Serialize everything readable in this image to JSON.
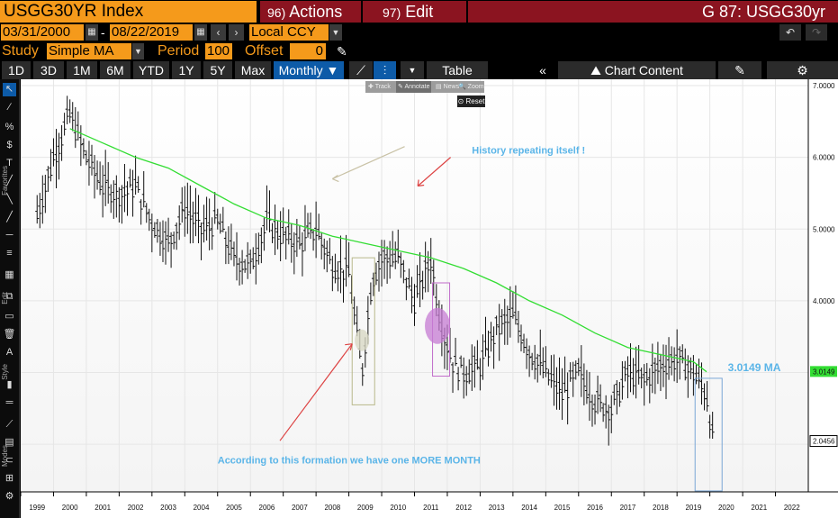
{
  "title_bar": {
    "ticker": "USGG30YR Index",
    "actions_code": "96)",
    "actions_label": "Actions",
    "edit_code": "97)",
    "edit_label": "Edit",
    "right_title": "G 87: USGG30yr"
  },
  "range": {
    "start_date": "03/31/2000",
    "dash": "-",
    "end_date": "08/22/2019",
    "currency": "Local CCY"
  },
  "study": {
    "label": "Study",
    "value": "Simple MA",
    "period_label": "Period",
    "period_value": "100",
    "offset_label": "Offset",
    "offset_value": "0"
  },
  "toolbar": {
    "periods": [
      "1D",
      "3D",
      "1M",
      "6M",
      "YTD",
      "1Y",
      "5Y",
      "Max"
    ],
    "frequency": "Monthly ▼",
    "table_label": "Table",
    "chart_content_label": "Chart Content"
  },
  "mini_toolbar": {
    "track": "Track",
    "annotate": "Annotate",
    "news": "News",
    "zoom": "Zoom",
    "reset": "Reset"
  },
  "rail_labels": {
    "favorites": "Favorites",
    "edit": "Edit",
    "style": "Style",
    "modes": "Modes"
  },
  "colors": {
    "orange": "#f59a1b",
    "maroon": "#8b1420",
    "ma_line": "#33dd33",
    "annotation_text": "#5bb5e8",
    "blue_active": "#0d5ba8"
  },
  "annotations": {
    "history": "History repeating itself !",
    "ma_label": "3.0149 MA",
    "formation": "According to this formation we have one MORE MONTH"
  },
  "chart_data": {
    "type": "line",
    "title": "",
    "xlabel": "",
    "ylabel": "",
    "x_tick_labels": [
      "1999",
      "2000",
      "2001",
      "2002",
      "2003",
      "2004",
      "2005",
      "2006",
      "2007",
      "2008",
      "2009",
      "2010",
      "2011",
      "2012",
      "2013",
      "2014",
      "2015",
      "2016",
      "2017",
      "2018",
      "2019",
      "2020",
      "2021",
      "2022"
    ],
    "y_tick_labels": [
      "7.0000",
      "6.0000",
      "5.0000",
      "4.0000",
      "3.0149",
      "2.0456"
    ],
    "ylim": [
      1.5,
      7.0
    ],
    "grid": true,
    "series": [
      {
        "role": "price",
        "x": [
          1999,
          1999.5,
          2000,
          2000.5,
          2001,
          2001.5,
          2002,
          2002.5,
          2003,
          2003.5,
          2004,
          2004.5,
          2005,
          2005.5,
          2006,
          2006.5,
          2007,
          2007.5,
          2008,
          2008.5,
          2008.9,
          2009.2,
          2009.5,
          2010,
          2010.5,
          2011,
          2011.3,
          2011.7,
          2012,
          2012.5,
          2013,
          2013.5,
          2014,
          2014.5,
          2015,
          2015.5,
          2016,
          2016.5,
          2017,
          2017.5,
          2018,
          2018.5,
          2019,
          2019.4,
          2019.6
        ],
        "y": [
          5.2,
          6.0,
          6.6,
          6.0,
          5.6,
          5.5,
          5.6,
          5.1,
          4.8,
          5.3,
          5.0,
          5.1,
          4.6,
          4.5,
          5.1,
          4.9,
          4.8,
          5.0,
          4.5,
          4.4,
          3.0,
          4.3,
          4.6,
          4.6,
          4.0,
          4.6,
          3.7,
          3.1,
          3.0,
          3.1,
          3.6,
          3.8,
          3.3,
          3.0,
          2.7,
          3.0,
          2.6,
          2.5,
          3.0,
          2.9,
          3.1,
          3.2,
          3.0,
          2.7,
          2.05
        ]
      },
      {
        "name": "3.0149 MA",
        "x": [
          2000,
          2001,
          2002,
          2003,
          2004,
          2005,
          2006,
          2007,
          2008,
          2009,
          2010,
          2011,
          2012,
          2013,
          2014,
          2015,
          2016,
          2017,
          2018,
          2019,
          2019.4
        ],
        "y": [
          6.4,
          6.2,
          6.0,
          5.85,
          5.6,
          5.35,
          5.15,
          5.05,
          4.9,
          4.8,
          4.7,
          4.6,
          4.45,
          4.25,
          4.0,
          3.8,
          3.55,
          3.35,
          3.25,
          3.15,
          3.01
        ]
      }
    ]
  }
}
